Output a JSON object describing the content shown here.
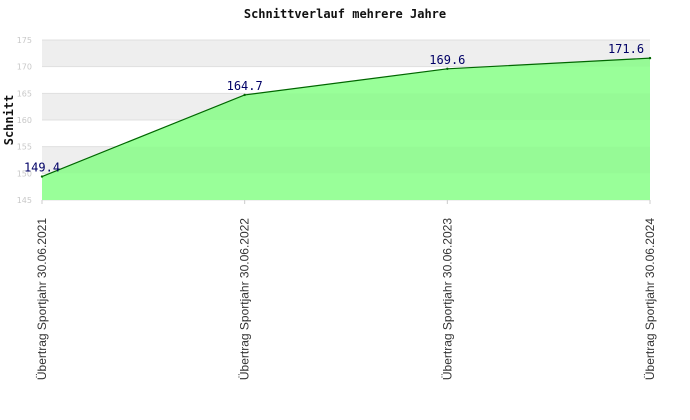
{
  "chart_data": {
    "type": "area",
    "title": "Schnittverlauf mehrere Jahre",
    "ylabel": "Schnitt",
    "xlabel": "",
    "categories": [
      "Übertrag Sportjahr 30.06.2021",
      "Übertrag Sportjahr 30.06.2022",
      "Übertrag Sportjahr 30.06.2023",
      "Übertrag Sportjahr 30.06.2024"
    ],
    "series": [
      {
        "values": [
          149.4,
          164.7,
          169.6,
          171.6
        ]
      }
    ],
    "data_labels": [
      "149.4",
      "164.7",
      "169.6",
      "171.6"
    ],
    "ylim": [
      145,
      175
    ],
    "yticks": [
      145,
      150,
      155,
      160,
      165,
      170,
      175
    ],
    "grid": true,
    "colors": {
      "fill": "#99ff99",
      "line": "#006600",
      "band_light": "#f3f3f3",
      "band_white": "#ffffff",
      "data_label": "#000066"
    }
  }
}
